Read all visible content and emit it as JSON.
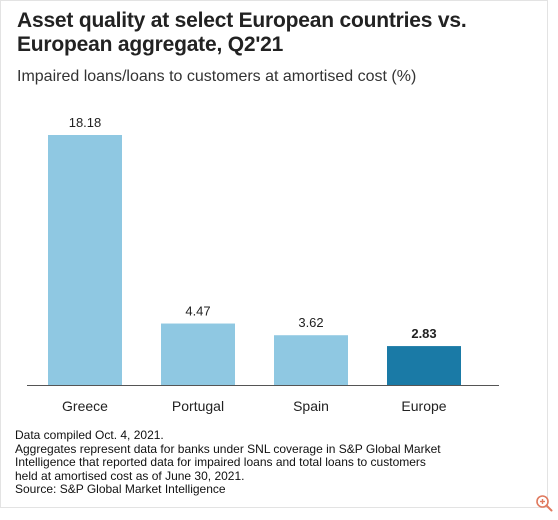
{
  "title_line1": "Asset quality at select European countries vs.",
  "title_line2": "European aggregate, Q2'21",
  "subtitle": "Impaired loans/loans to customers at amortised cost (%)",
  "notes": [
    "Data compiled Oct. 4, 2021.",
    "Aggregates represent data for banks under SNL coverage in S&P Global Market",
    "Intelligence that reported data for impaired loans and total loans to customers",
    "held at amortised cost as of June 30, 2021.",
    "Source: S&P Global Market Intelligence"
  ],
  "colors": {
    "bar": "#8fc8e2",
    "highlight": "#1a7aa6",
    "axis": "#555555",
    "zoom": "#e07a5f"
  },
  "zoom_icon": "zoom-in-icon",
  "chart_data": {
    "type": "bar",
    "categories": [
      "Greece",
      "Portugal",
      "Spain",
      "Europe"
    ],
    "values": [
      18.18,
      4.47,
      3.62,
      2.83
    ],
    "value_labels": [
      "18.18",
      "4.47",
      "3.62",
      "2.83"
    ],
    "highlight_index": 3,
    "ylim": [
      0,
      18.18
    ],
    "grid": false,
    "legend": "none"
  }
}
